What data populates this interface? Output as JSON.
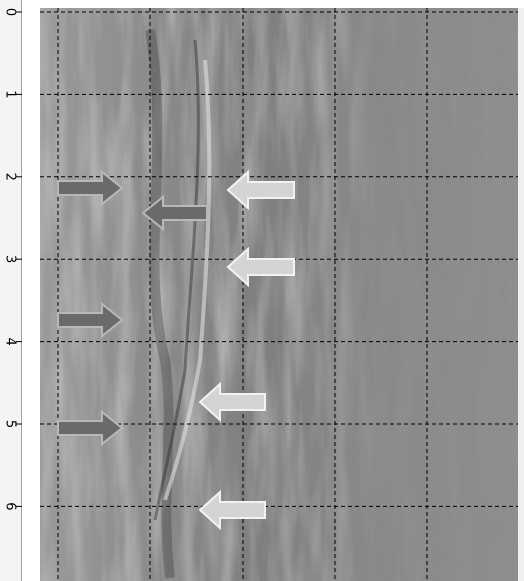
{
  "axis": {
    "labels": [
      "0",
      "1",
      "2",
      "3",
      "4",
      "5",
      "6"
    ]
  }
}
